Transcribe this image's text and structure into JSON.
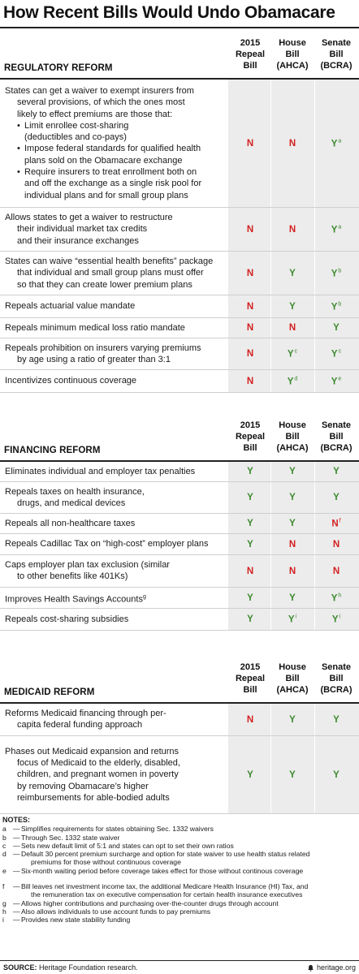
{
  "title": "How Recent Bills Would Undo Obamacare",
  "colors": {
    "yes": "#3c8a2e",
    "no": "#d32020",
    "shade": "#ececec"
  },
  "columns": [
    [
      "2015",
      "Repeal",
      "Bill"
    ],
    [
      "House",
      "Bill",
      "(AHCA)"
    ],
    [
      "Senate",
      "Bill",
      "(BCRA)"
    ]
  ],
  "sections": [
    {
      "title": "REGULATORY REFORM",
      "rows": [
        {
          "lines": [
            "States can get a waiver to exempt insurers from",
            "several provisions, of which the ones most",
            "likely to effect premiums are those that:"
          ],
          "bullets": [
            [
              "Limit enrollee cost-sharing",
              "(deductibles and co-pays)"
            ],
            [
              "Impose federal standards for qualified health",
              "plans sold on the Obamacare exchange"
            ],
            [
              "Require insurers to treat enrollment both on",
              "and off the exchange as a single risk pool for",
              "individual plans and for small group plans"
            ]
          ],
          "cells": [
            {
              "v": "N"
            },
            {
              "v": "N"
            },
            {
              "v": "Y",
              "n": "a"
            }
          ]
        },
        {
          "lines": [
            "Allows states to get a waiver to restructure",
            "their individual market tax credits",
            "and their insurance exchanges"
          ],
          "cells": [
            {
              "v": "N"
            },
            {
              "v": "N"
            },
            {
              "v": "Y",
              "n": "a"
            }
          ]
        },
        {
          "lines": [
            "States can waive “essential health benefits” package",
            "that individual and small group plans must offer",
            "so that they can create lower premium plans"
          ],
          "cells": [
            {
              "v": "N"
            },
            {
              "v": "Y"
            },
            {
              "v": "Y",
              "n": "b"
            }
          ]
        },
        {
          "lines": [
            "Repeals actuarial value mandate"
          ],
          "cells": [
            {
              "v": "N"
            },
            {
              "v": "Y"
            },
            {
              "v": "Y",
              "n": "b"
            }
          ]
        },
        {
          "lines": [
            "Repeals minimum medical loss ratio mandate"
          ],
          "cells": [
            {
              "v": "N"
            },
            {
              "v": "N"
            },
            {
              "v": "Y"
            }
          ]
        },
        {
          "lines": [
            "Repeals prohibition on insurers varying premiums",
            "by age using a ratio of greater than 3:1"
          ],
          "cells": [
            {
              "v": "N"
            },
            {
              "v": "Y",
              "n": "c"
            },
            {
              "v": "Y",
              "n": "c"
            }
          ]
        },
        {
          "lines": [
            "Incentivizes continuous coverage"
          ],
          "cells": [
            {
              "v": "N"
            },
            {
              "v": "Y",
              "n": "d"
            },
            {
              "v": "Y",
              "n": "e"
            }
          ]
        }
      ]
    },
    {
      "title": "FINANCING REFORM",
      "rows": [
        {
          "lines": [
            "Eliminates individual and employer tax penalties"
          ],
          "cells": [
            {
              "v": "Y"
            },
            {
              "v": "Y"
            },
            {
              "v": "Y"
            }
          ]
        },
        {
          "lines": [
            "Repeals taxes on health insurance,",
            "drugs, and medical devices"
          ],
          "cells": [
            {
              "v": "Y"
            },
            {
              "v": "Y"
            },
            {
              "v": "Y"
            }
          ]
        },
        {
          "lines": [
            "Repeals all non-healthcare taxes"
          ],
          "cells": [
            {
              "v": "Y"
            },
            {
              "v": "Y"
            },
            {
              "v": "N",
              "n": "f"
            }
          ]
        },
        {
          "lines": [
            "Repeals Cadillac Tax on “high-cost” employer plans"
          ],
          "cells": [
            {
              "v": "Y"
            },
            {
              "v": "N"
            },
            {
              "v": "N"
            }
          ]
        },
        {
          "lines": [
            "Caps employer plan tax exclusion (similar",
            "to other benefits like 401Ks)"
          ],
          "cells": [
            {
              "v": "N"
            },
            {
              "v": "N"
            },
            {
              "v": "N"
            }
          ]
        },
        {
          "lines": [
            "Improves Health Savings Accounts"
          ],
          "sup": "g",
          "cells": [
            {
              "v": "Y"
            },
            {
              "v": "Y"
            },
            {
              "v": "Y",
              "n": "h"
            }
          ]
        },
        {
          "lines": [
            "Repeals cost-sharing subsidies"
          ],
          "cells": [
            {
              "v": "Y"
            },
            {
              "v": "Y",
              "n": "i"
            },
            {
              "v": "Y",
              "n": "i"
            }
          ]
        }
      ]
    },
    {
      "title": "MEDICAID REFORM",
      "rows": [
        {
          "lines": [
            "Reforms Medicaid financing through per-",
            "capita federal funding approach"
          ],
          "cells": [
            {
              "v": "N"
            },
            {
              "v": "Y"
            },
            {
              "v": "Y"
            }
          ]
        },
        {
          "lines": [
            "Phases out Medicaid expansion and returns",
            "focus of Medicaid to the elderly, disabled,",
            "children, and pregnant women in poverty",
            "by removing Obamacare’s higher",
            "reimbursements for able-bodied adults"
          ],
          "cells": [
            {
              "v": "Y"
            },
            {
              "v": "Y"
            },
            {
              "v": "Y"
            }
          ]
        }
      ]
    }
  ],
  "notes": {
    "title": "NOTES:",
    "items": [
      {
        "k": "a",
        "lines": [
          "Simplifies requirements for states obtaining Sec. 1332 waivers"
        ]
      },
      {
        "k": "b",
        "lines": [
          "Through Sec. 1332 state waiver"
        ]
      },
      {
        "k": "c",
        "lines": [
          "Sets new default limit of 5:1 and states can opt to set their own ratios"
        ]
      },
      {
        "k": "d",
        "lines": [
          "Default 30 percent premium surcharge and option for state waiver to use health status related",
          "premiums for those without continuous coverage"
        ]
      },
      {
        "k": "e",
        "lines": [
          "Six-month waiting period before coverage takes effect for those without continous coverage"
        ]
      },
      {
        "k": "f",
        "lines": [
          "Bill leaves net investment income tax, the additional Medicare Health Insurance (HI) Tax, and",
          "the remuneration tax on executive compensation for certain health insurance executives"
        ]
      },
      {
        "k": "g",
        "lines": [
          "Allows higher contributions and purchasing over-the-counter drugs through account"
        ]
      },
      {
        "k": "h",
        "lines": [
          "Also allows individuals to use account funds to pay premiums"
        ]
      },
      {
        "k": "i",
        "lines": [
          "Provides new state stability funding"
        ]
      }
    ]
  },
  "footer": {
    "source_label": "SOURCE:",
    "source_text": "Heritage Foundation research.",
    "site": "heritage.org"
  }
}
